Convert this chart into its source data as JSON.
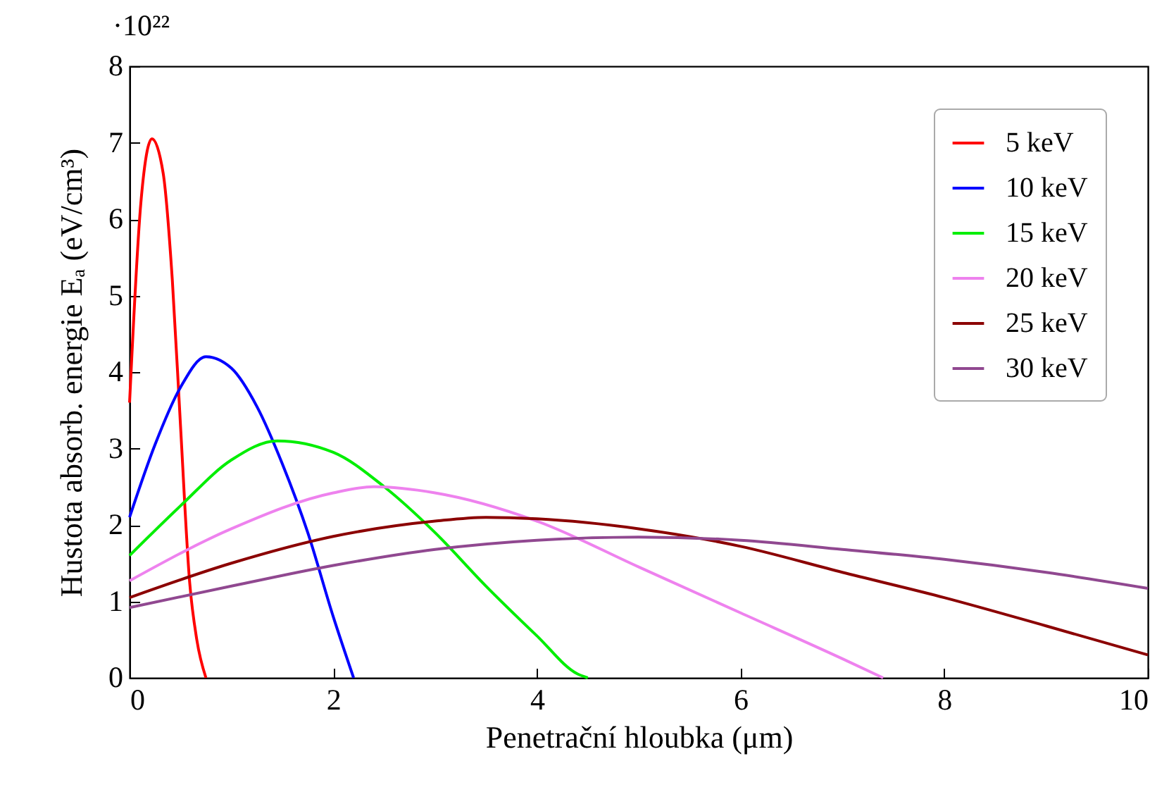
{
  "chart_data": {
    "type": "line",
    "xlabel": "Penetrační hloubka (μm)",
    "ylabel": "Hustota absorb. energie Eₐ (eV/cm³)",
    "annotations": [
      "·10²²"
    ],
    "xlim": [
      0,
      10
    ],
    "xticks": [
      0,
      2,
      4,
      6,
      8,
      10
    ],
    "ylim": [
      0,
      8
    ],
    "yticks": [
      0,
      1,
      2,
      3,
      4,
      5,
      6,
      7,
      8
    ],
    "grid": false,
    "legend": "top right",
    "line_style": "solid",
    "marker": "none",
    "series": [
      {
        "name": "5 keV",
        "color": "#ff0000",
        "x": [
          0,
          0.11,
          0.22,
          0.33,
          0.42,
          0.5,
          0.59,
          0.66,
          0.75
        ],
        "values": [
          3.6,
          6.2,
          7.05,
          6.6,
          5.2,
          3.3,
          1.25,
          0.5,
          0
        ]
      },
      {
        "name": "10 keV",
        "color": "#0000ff",
        "x": [
          0,
          0.25,
          0.5,
          0.75,
          1.0,
          1.25,
          1.5,
          1.75,
          2.0,
          2.2
        ],
        "values": [
          2.1,
          3.05,
          3.8,
          4.2,
          4.05,
          3.55,
          2.8,
          1.9,
          0.8,
          0
        ]
      },
      {
        "name": "15 keV",
        "color": "#00ee00",
        "x": [
          0,
          0.5,
          1.0,
          1.45,
          2.0,
          2.5,
          3.0,
          3.5,
          4.0,
          4.4,
          4.5
        ],
        "values": [
          1.6,
          2.25,
          2.85,
          3.1,
          2.95,
          2.5,
          1.9,
          1.2,
          0.55,
          0.05,
          0
        ]
      },
      {
        "name": "20 keV",
        "color": "#ee82ee",
        "x": [
          0,
          1,
          2,
          2.4,
          3,
          4,
          5,
          6,
          7,
          7.4
        ],
        "values": [
          1.27,
          1.95,
          2.42,
          2.5,
          2.42,
          2.05,
          1.45,
          0.85,
          0.25,
          0
        ]
      },
      {
        "name": "25 keV",
        "color": "#8b0000",
        "x": [
          0,
          1,
          2,
          3,
          3.5,
          4,
          5,
          6,
          7,
          8,
          9,
          10
        ],
        "values": [
          1.05,
          1.5,
          1.85,
          2.05,
          2.1,
          2.08,
          1.95,
          1.72,
          1.38,
          1.05,
          0.68,
          0.3
        ]
      },
      {
        "name": "30 keV",
        "color": "#904890",
        "x": [
          0,
          1,
          2,
          3,
          4,
          5,
          6,
          7,
          8,
          9,
          10
        ],
        "values": [
          0.92,
          1.2,
          1.47,
          1.68,
          1.8,
          1.84,
          1.8,
          1.68,
          1.55,
          1.38,
          1.17
        ]
      }
    ]
  }
}
